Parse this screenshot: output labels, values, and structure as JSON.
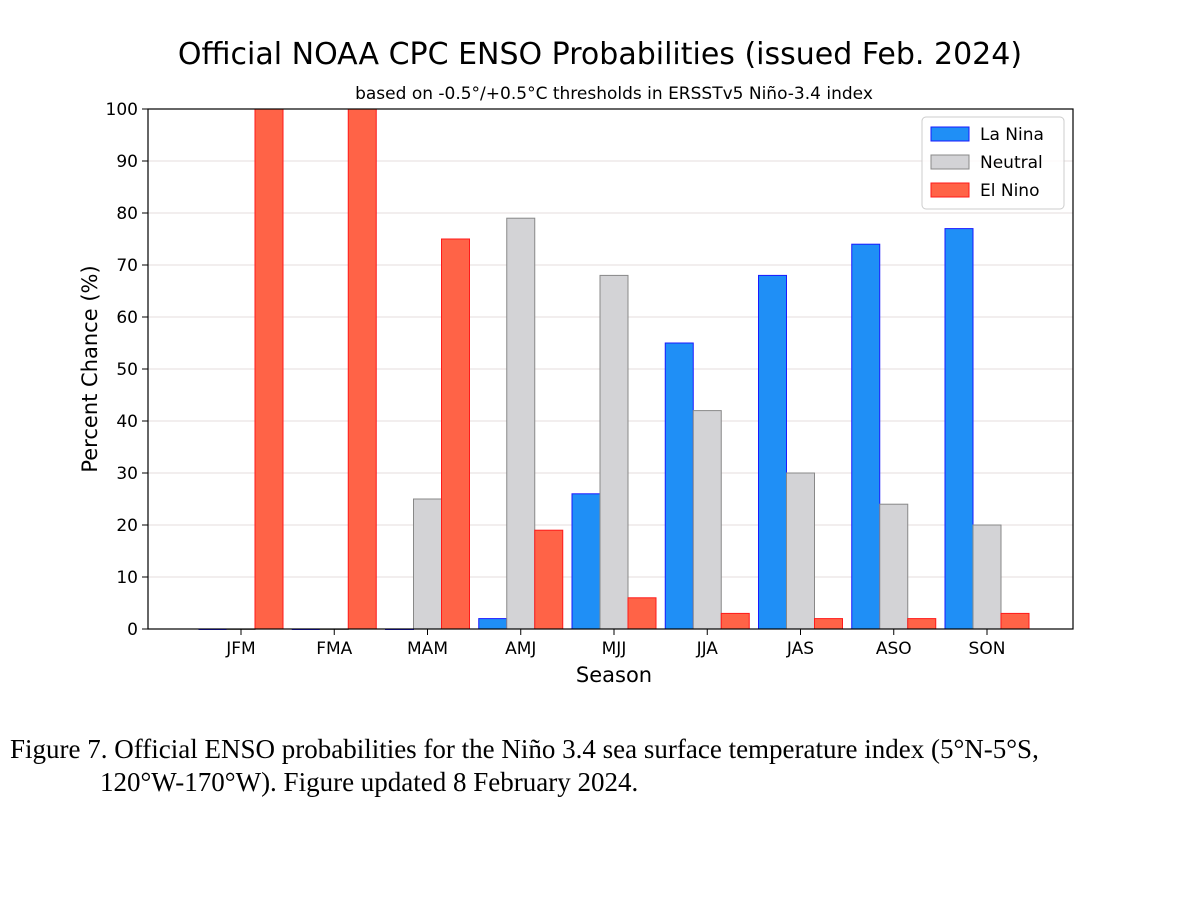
{
  "chart_data": {
    "type": "bar",
    "title": "Official NOAA CPC ENSO Probabilities (issued Feb. 2024)",
    "subtitle": "based on -0.5°/+0.5°C thresholds in ERSSTv5 Niño-3.4 index",
    "xlabel": "Season",
    "ylabel": "Percent Chance (%)",
    "ylim": [
      0,
      100
    ],
    "yticks": [
      0,
      10,
      20,
      30,
      40,
      50,
      60,
      70,
      80,
      90,
      100
    ],
    "grid": "horizontal",
    "legend_position": "top-right",
    "categories": [
      "JFM",
      "FMA",
      "MAM",
      "AMJ",
      "MJJ",
      "JJA",
      "JAS",
      "ASO",
      "SON"
    ],
    "series": [
      {
        "name": "La Nina",
        "color": "#1f8ff6",
        "edge": "#1a1aff",
        "values": [
          0,
          0,
          0,
          2,
          26,
          55,
          68,
          74,
          77
        ]
      },
      {
        "name": "Neutral",
        "color": "#d3d3d6",
        "edge": "#888888",
        "values": [
          0,
          0,
          25,
          79,
          68,
          42,
          30,
          24,
          20
        ]
      },
      {
        "name": "El Nino",
        "color": "#ff6347",
        "edge": "#ff1a1a",
        "values": [
          100,
          100,
          75,
          19,
          6,
          3,
          2,
          2,
          3
        ]
      }
    ]
  },
  "caption": {
    "line1": "Figure 7. Official ENSO probabilities for the Niño 3.4 sea surface temperature index (5°N-5°S,",
    "line2": "120°W-170°W). Figure updated 8 February 2024."
  }
}
